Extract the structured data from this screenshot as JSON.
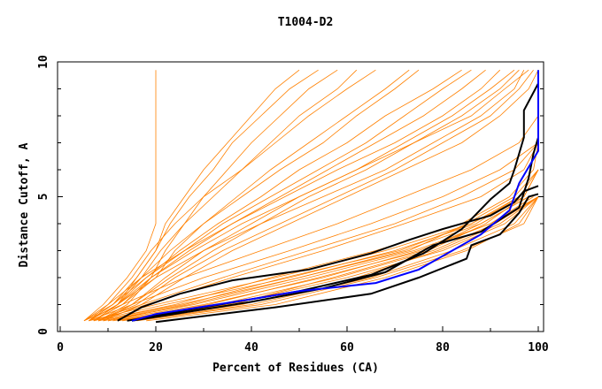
{
  "chart_data": {
    "type": "line",
    "title": "T1004-D2",
    "xlabel": "Percent of Residues (CA)",
    "ylabel": "Distance Cutoff, A",
    "xlim": [
      0,
      100
    ],
    "ylim": [
      0,
      10
    ],
    "xticks": [
      "0",
      "20",
      "40",
      "60",
      "80",
      "100"
    ],
    "yticks": [
      "0",
      "5",
      "10"
    ],
    "colors": {
      "models": "#ff8000",
      "highlight": "#0000ff",
      "top": "#000000"
    },
    "orange_y_levels": [
      0.4,
      1,
      2,
      3,
      4,
      5,
      6,
      7,
      8,
      9,
      9.7
    ],
    "orange_series_x": [
      [
        10,
        30,
        55,
        75,
        90,
        100
      ],
      [
        8,
        25,
        50,
        72,
        88,
        98
      ],
      [
        12,
        35,
        60,
        80,
        93,
        100
      ],
      [
        6,
        20,
        45,
        68,
        86,
        97,
        100
      ],
      [
        15,
        40,
        65,
        82,
        95,
        100
      ],
      [
        9,
        28,
        52,
        74,
        90,
        99
      ],
      [
        11,
        33,
        58,
        78,
        91,
        100
      ],
      [
        7,
        22,
        48,
        70,
        87,
        96,
        100
      ],
      [
        14,
        38,
        62,
        79,
        92,
        100
      ],
      [
        13,
        36,
        57,
        77,
        89,
        97,
        100
      ],
      [
        10,
        27,
        50,
        73,
        85,
        95,
        100
      ],
      [
        16,
        42,
        66,
        84,
        97,
        100
      ],
      [
        8,
        24,
        44,
        66,
        84,
        94,
        99,
        100
      ],
      [
        12,
        31,
        54,
        76,
        88,
        98
      ],
      [
        9,
        26,
        47,
        71,
        86,
        96
      ],
      [
        18,
        45,
        68,
        85,
        96,
        100
      ],
      [
        6,
        15,
        30,
        48,
        65,
        80,
        92,
        100
      ],
      [
        7,
        17,
        34,
        52,
        70,
        84,
        95,
        100
      ],
      [
        5,
        13,
        26,
        42,
        58,
        72,
        86,
        96,
        100
      ],
      [
        8,
        18,
        36,
        55,
        72,
        88,
        97,
        100
      ],
      [
        6,
        12,
        20,
        30,
        42,
        55,
        68,
        78,
        88,
        95,
        97
      ],
      [
        5,
        10,
        17,
        26,
        36,
        47,
        58,
        70,
        80,
        88,
        92
      ],
      [
        7,
        13,
        20,
        24,
        30,
        38,
        46,
        55,
        62,
        70,
        75
      ],
      [
        6,
        11,
        16,
        20,
        22,
        26,
        30,
        35,
        40,
        45,
        50
      ],
      [
        8,
        14,
        19,
        22,
        26,
        30,
        35,
        40,
        46,
        52,
        58
      ],
      [
        5,
        9,
        14,
        18,
        20,
        20,
        20,
        20,
        20,
        20,
        20
      ],
      [
        6,
        10,
        15,
        19,
        24,
        30,
        38,
        45,
        52,
        60,
        66
      ],
      [
        7,
        12,
        18,
        25,
        33,
        42,
        50,
        60,
        68,
        78,
        84
      ],
      [
        9,
        15,
        22,
        30,
        40,
        50,
        62,
        72,
        82,
        90,
        95
      ],
      [
        6,
        11,
        17,
        23,
        30,
        37,
        44,
        52,
        60,
        68,
        73
      ],
      [
        7,
        13,
        19,
        27,
        36,
        46,
        56,
        66,
        76,
        84,
        89
      ],
      [
        8,
        16,
        24,
        34,
        46,
        58,
        70,
        80,
        90,
        96,
        99
      ],
      [
        6,
        12,
        17,
        21,
        26,
        32,
        38,
        44,
        50,
        58,
        62
      ],
      [
        5,
        11,
        18,
        26,
        34,
        44,
        54,
        64,
        72,
        80,
        86
      ],
      [
        9,
        17,
        26,
        36,
        48,
        60,
        72,
        84,
        92,
        98,
        100
      ],
      [
        7,
        12,
        16,
        20,
        23,
        27,
        32,
        36,
        42,
        48,
        54
      ],
      [
        6,
        12,
        19,
        28,
        38,
        50,
        62,
        74,
        84,
        92,
        96
      ],
      [
        8,
        15,
        23,
        32,
        42,
        52,
        64,
        74,
        86,
        93,
        98
      ]
    ],
    "black_series": [
      [
        [
          12,
          0.4
        ],
        [
          17,
          0.9
        ],
        [
          25,
          1.4
        ],
        [
          36,
          1.9
        ],
        [
          52,
          2.3
        ],
        [
          65,
          2.9
        ],
        [
          73,
          3.4
        ],
        [
          80,
          3.8
        ],
        [
          90,
          4.3
        ],
        [
          95,
          4.8
        ],
        [
          97,
          5.2
        ],
        [
          100,
          5.4
        ]
      ],
      [
        [
          14,
          0.4
        ],
        [
          30,
          0.9
        ],
        [
          50,
          1.5
        ],
        [
          65,
          2.1
        ],
        [
          76,
          2.9
        ],
        [
          84,
          3.8
        ],
        [
          90,
          4.9
        ],
        [
          94,
          5.5
        ],
        [
          95,
          6.0
        ],
        [
          97,
          7.2
        ],
        [
          97,
          8.2
        ],
        [
          100,
          9.2
        ]
      ],
      [
        [
          15,
          0.4
        ],
        [
          40,
          1.1
        ],
        [
          55,
          1.6
        ],
        [
          68,
          2.2
        ],
        [
          78,
          3.2
        ],
        [
          88,
          3.7
        ],
        [
          96,
          4.6
        ],
        [
          98,
          5.7
        ],
        [
          99,
          6.6
        ],
        [
          100,
          7.2
        ]
      ],
      [
        [
          20,
          0.35
        ],
        [
          45,
          0.9
        ],
        [
          65,
          1.4
        ],
        [
          75,
          2.0
        ],
        [
          85,
          2.7
        ],
        [
          86,
          3.2
        ],
        [
          92,
          3.6
        ],
        [
          96,
          4.4
        ],
        [
          98,
          5.0
        ],
        [
          100,
          5.1
        ]
      ]
    ],
    "blue_series": [
      [
        15,
        0.4
      ],
      [
        20,
        0.65
      ],
      [
        40,
        1.2
      ],
      [
        50,
        1.5
      ],
      [
        66,
        1.8
      ],
      [
        75,
        2.3
      ],
      [
        82,
        3.0
      ],
      [
        88,
        3.6
      ],
      [
        94,
        4.5
      ],
      [
        96,
        5.5
      ],
      [
        100,
        6.7
      ],
      [
        100,
        9.7
      ]
    ]
  }
}
